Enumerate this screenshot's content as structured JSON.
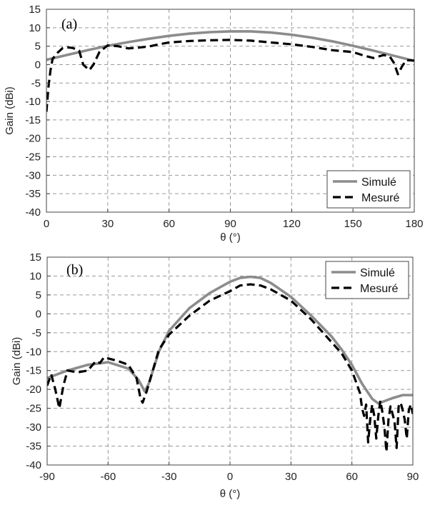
{
  "chart_data": [
    {
      "type": "line",
      "panel_label": "(a)",
      "xlabel": "θ (°)",
      "ylabel": "Gain (dBi)",
      "xlim": [
        0,
        180
      ],
      "ylim": [
        -40,
        15
      ],
      "xticks": [
        0,
        30,
        60,
        90,
        120,
        150,
        180
      ],
      "yticks": [
        -40,
        -35,
        -30,
        -25,
        -20,
        -15,
        -10,
        -5,
        0,
        5,
        10,
        15
      ],
      "grid": true,
      "legend_position": "bottom-right",
      "series": [
        {
          "name": "Simulé",
          "color": "#8c8c8c",
          "style": "solid",
          "x": [
            0,
            10,
            20,
            30,
            40,
            50,
            60,
            70,
            80,
            90,
            100,
            110,
            120,
            130,
            140,
            150,
            160,
            170,
            180
          ],
          "y": [
            1.3,
            2.6,
            3.9,
            5.1,
            6.1,
            7.0,
            7.8,
            8.4,
            8.8,
            9.0,
            9.0,
            8.7,
            8.1,
            7.3,
            6.3,
            5.1,
            3.8,
            2.4,
            1.0
          ]
        },
        {
          "name": "Mesuré",
          "color": "#000000",
          "style": "dashed",
          "x": [
            0,
            1,
            2,
            3,
            5,
            8,
            10,
            13,
            16,
            18,
            21,
            23,
            26,
            30,
            35,
            40,
            45,
            50,
            55,
            60,
            70,
            80,
            90,
            100,
            110,
            120,
            130,
            140,
            150,
            155,
            160,
            165,
            168,
            170,
            172,
            174,
            176,
            180
          ],
          "y": [
            -12.8,
            -6.0,
            -1.5,
            1.5,
            3.0,
            4.5,
            4.7,
            4.5,
            3.8,
            0.0,
            -1.5,
            0.0,
            3.5,
            5.2,
            5.0,
            4.4,
            4.6,
            4.9,
            5.5,
            6.0,
            6.4,
            6.6,
            6.7,
            6.5,
            6.0,
            5.5,
            4.8,
            3.9,
            3.4,
            2.5,
            1.8,
            2.6,
            2.2,
            0.5,
            -2.6,
            -0.5,
            1.2,
            1.1
          ]
        }
      ]
    },
    {
      "type": "line",
      "panel_label": "(b)",
      "xlabel": "θ (°)",
      "ylabel": "Gain (dBi)",
      "xlim": [
        -90,
        90
      ],
      "ylim": [
        -40,
        15
      ],
      "xticks": [
        -90,
        -60,
        -30,
        0,
        30,
        60,
        90
      ],
      "yticks": [
        -40,
        -35,
        -30,
        -25,
        -20,
        -15,
        -10,
        -5,
        0,
        5,
        10,
        15
      ],
      "grid": true,
      "legend_position": "top-right",
      "series": [
        {
          "name": "Simulé",
          "color": "#8c8c8c",
          "style": "solid",
          "x": [
            -90,
            -80,
            -70,
            -60,
            -50,
            -45,
            -42,
            -40,
            -35,
            -30,
            -20,
            -10,
            0,
            5,
            10,
            15,
            20,
            30,
            40,
            50,
            55,
            60,
            65,
            70,
            73,
            75,
            80,
            85,
            90
          ],
          "y": [
            -17.0,
            -15.0,
            -13.5,
            -12.8,
            -14.5,
            -17.5,
            -20.5,
            -18.5,
            -10.0,
            -4.5,
            1.5,
            5.5,
            8.5,
            9.5,
            9.8,
            9.5,
            8.2,
            4.5,
            -0.5,
            -6.0,
            -9.5,
            -13.5,
            -18.5,
            -22.5,
            -23.7,
            -23.3,
            -22.3,
            -21.5,
            -21.5
          ]
        },
        {
          "name": "Mesuré",
          "color": "#000000",
          "style": "dashed",
          "x": [
            -90,
            -88,
            -86,
            -84,
            -82,
            -80,
            -75,
            -70,
            -66,
            -64,
            -62,
            -60,
            -55,
            -50,
            -46,
            -44,
            -43,
            -41,
            -38,
            -35,
            -30,
            -20,
            -10,
            0,
            5,
            10,
            15,
            20,
            30,
            40,
            50,
            55,
            60,
            62,
            64,
            65,
            66,
            67,
            68,
            69,
            70,
            71,
            72,
            73,
            74,
            75,
            76,
            77,
            78,
            79,
            80,
            81,
            82,
            83,
            84,
            85,
            86,
            87,
            88,
            89,
            90
          ],
          "y": [
            -19.0,
            -16.0,
            -20.0,
            -25.0,
            -19.0,
            -15.0,
            -15.5,
            -15.0,
            -12.5,
            -13.0,
            -11.5,
            -11.8,
            -12.5,
            -13.5,
            -17.0,
            -22.5,
            -23.5,
            -20.5,
            -15.0,
            -9.5,
            -5.5,
            -0.5,
            3.5,
            6.0,
            7.5,
            7.8,
            7.5,
            6.5,
            3.5,
            -1.5,
            -7.5,
            -10.5,
            -15.0,
            -18.0,
            -21.0,
            -25.0,
            -27.0,
            -24.0,
            -34.0,
            -28.0,
            -24.0,
            -27.0,
            -33.0,
            -27.0,
            -23.0,
            -26.0,
            -30.0,
            -36.5,
            -28.0,
            -24.5,
            -26.5,
            -28.5,
            -35.5,
            -24.5,
            -23.5,
            -25.5,
            -28.0,
            -33.0,
            -25.5,
            -24.0,
            -26.5
          ]
        }
      ]
    }
  ]
}
